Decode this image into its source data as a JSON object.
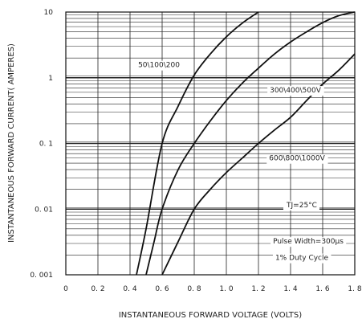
{
  "chart_data": {
    "type": "line",
    "title": "",
    "xlabel": "INSTANTANEOUS FORWARD VOLTAGE (VOLTS)",
    "ylabel": "INSTANTANEOUS FORWARD CURRENT( AMPERES)",
    "xlim": [
      0,
      1.8
    ],
    "ylim": [
      0.001,
      10
    ],
    "yscale": "log",
    "grid": true,
    "x_ticks": [
      0,
      0.2,
      0.4,
      0.6,
      0.8,
      1.0,
      1.2,
      1.4,
      1.6,
      1.8
    ],
    "x_tick_labels": [
      "0",
      "0. 2",
      "0. 4",
      "0. 6",
      "0. 8",
      "1. 0",
      "1. 2",
      "1. 4",
      "1. 6",
      "1. 8"
    ],
    "y_ticks": [
      0.001,
      0.01,
      0.1,
      1,
      10
    ],
    "y_tick_labels": [
      "0. 001",
      "0. 01",
      "0. 1",
      "1",
      "10"
    ],
    "series": [
      {
        "name": "50\\100\\200",
        "x": [
          0.44,
          0.5,
          0.6,
          0.7,
          0.8,
          0.9,
          1.0,
          1.1,
          1.2
        ],
        "y": [
          0.001,
          0.005,
          0.1,
          0.37,
          1.1,
          2.3,
          4.2,
          6.8,
          10
        ]
      },
      {
        "name": "300\\400\\500V",
        "x": [
          0.5,
          0.55,
          0.6,
          0.7,
          0.8,
          0.9,
          1.0,
          1.1,
          1.2,
          1.3,
          1.4,
          1.5,
          1.6,
          1.7,
          1.8
        ],
        "y": [
          0.001,
          0.0032,
          0.01,
          0.04,
          0.1,
          0.22,
          0.45,
          0.83,
          1.4,
          2.3,
          3.5,
          5.0,
          6.9,
          8.8,
          10
        ]
      },
      {
        "name": "600\\800\\1000V",
        "x": [
          0.6,
          0.7,
          0.8,
          0.9,
          1.0,
          1.1,
          1.2,
          1.3,
          1.4,
          1.5,
          1.6,
          1.7,
          1.8
        ],
        "y": [
          0.001,
          0.0032,
          0.01,
          0.02,
          0.036,
          0.06,
          0.1,
          0.16,
          0.25,
          0.45,
          0.8,
          1.3,
          2.3
        ]
      }
    ],
    "annotations": [
      {
        "text": "50\\100\\200",
        "x": 0.58,
        "y": 1.55
      },
      {
        "text": "300\\400\\500V",
        "x": 1.43,
        "y": 0.64
      },
      {
        "text": "600\\800\\1000V",
        "x": 1.44,
        "y": 0.059
      },
      {
        "text": "TJ=25°C",
        "x": 1.47,
        "y": 0.0115
      },
      {
        "text": "Pulse Width=300μs",
        "x": 1.51,
        "y": 0.0032
      },
      {
        "text": "1% Duty Cycle",
        "x": 1.47,
        "y": 0.0018
      }
    ],
    "line_color": "#111111",
    "grid_color": "#222222",
    "label_background": "#ffffff"
  }
}
